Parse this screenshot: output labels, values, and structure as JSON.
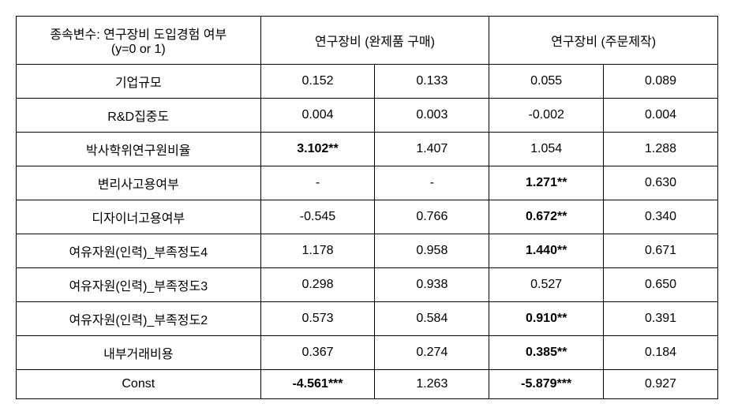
{
  "table": {
    "header": {
      "depvar_line1": "종속변수: 연구장비 도입경험 여부",
      "depvar_line2": "(y=0 or 1)",
      "col_group_1": "연구장비 (완제품 구매)",
      "col_group_2": "연구장비 (주문제작)"
    },
    "rows": [
      {
        "label": "기업규모",
        "c1": {
          "val": "0.152",
          "bold": false
        },
        "c2": {
          "val": "0.133",
          "bold": false
        },
        "c3": {
          "val": "0.055",
          "bold": false
        },
        "c4": {
          "val": "0.089",
          "bold": false
        }
      },
      {
        "label": "R&D집중도",
        "c1": {
          "val": "0.004",
          "bold": false
        },
        "c2": {
          "val": "0.003",
          "bold": false
        },
        "c3": {
          "val": "-0.002",
          "bold": false
        },
        "c4": {
          "val": "0.004",
          "bold": false
        }
      },
      {
        "label": "박사학위연구원비율",
        "c1": {
          "val": "3.102**",
          "bold": true
        },
        "c2": {
          "val": "1.407",
          "bold": false
        },
        "c3": {
          "val": "1.054",
          "bold": false
        },
        "c4": {
          "val": "1.288",
          "bold": false
        }
      },
      {
        "label": "변리사고용여부",
        "c1": {
          "val": "-",
          "bold": false
        },
        "c2": {
          "val": "-",
          "bold": false
        },
        "c3": {
          "val": "1.271**",
          "bold": true
        },
        "c4": {
          "val": "0.630",
          "bold": false
        }
      },
      {
        "label": "디자이너고용여부",
        "c1": {
          "val": "-0.545",
          "bold": false
        },
        "c2": {
          "val": "0.766",
          "bold": false
        },
        "c3": {
          "val": "0.672**",
          "bold": true
        },
        "c4": {
          "val": "0.340",
          "bold": false
        }
      },
      {
        "label": "여유자원(인력)_부족정도4",
        "c1": {
          "val": "1.178",
          "bold": false
        },
        "c2": {
          "val": "0.958",
          "bold": false
        },
        "c3": {
          "val": "1.440**",
          "bold": true
        },
        "c4": {
          "val": "0.671",
          "bold": false
        }
      },
      {
        "label": "여유자원(인력)_부족정도3",
        "c1": {
          "val": "0.298",
          "bold": false
        },
        "c2": {
          "val": "0.938",
          "bold": false
        },
        "c3": {
          "val": "0.527",
          "bold": false
        },
        "c4": {
          "val": "0.650",
          "bold": false
        }
      },
      {
        "label": "여유자원(인력)_부족정도2",
        "c1": {
          "val": "0.573",
          "bold": false
        },
        "c2": {
          "val": "0.584",
          "bold": false
        },
        "c3": {
          "val": "0.910**",
          "bold": true
        },
        "c4": {
          "val": "0.391",
          "bold": false
        }
      },
      {
        "label": "내부거래비용",
        "c1": {
          "val": "0.367",
          "bold": false
        },
        "c2": {
          "val": "0.274",
          "bold": false
        },
        "c3": {
          "val": "0.385**",
          "bold": true
        },
        "c4": {
          "val": "0.184",
          "bold": false
        }
      },
      {
        "label": "Const",
        "c1": {
          "val": "-4.561***",
          "bold": true
        },
        "c2": {
          "val": "1.263",
          "bold": false
        },
        "c3": {
          "val": "-5.879***",
          "bold": true
        },
        "c4": {
          "val": "0.927",
          "bold": false
        }
      }
    ]
  }
}
